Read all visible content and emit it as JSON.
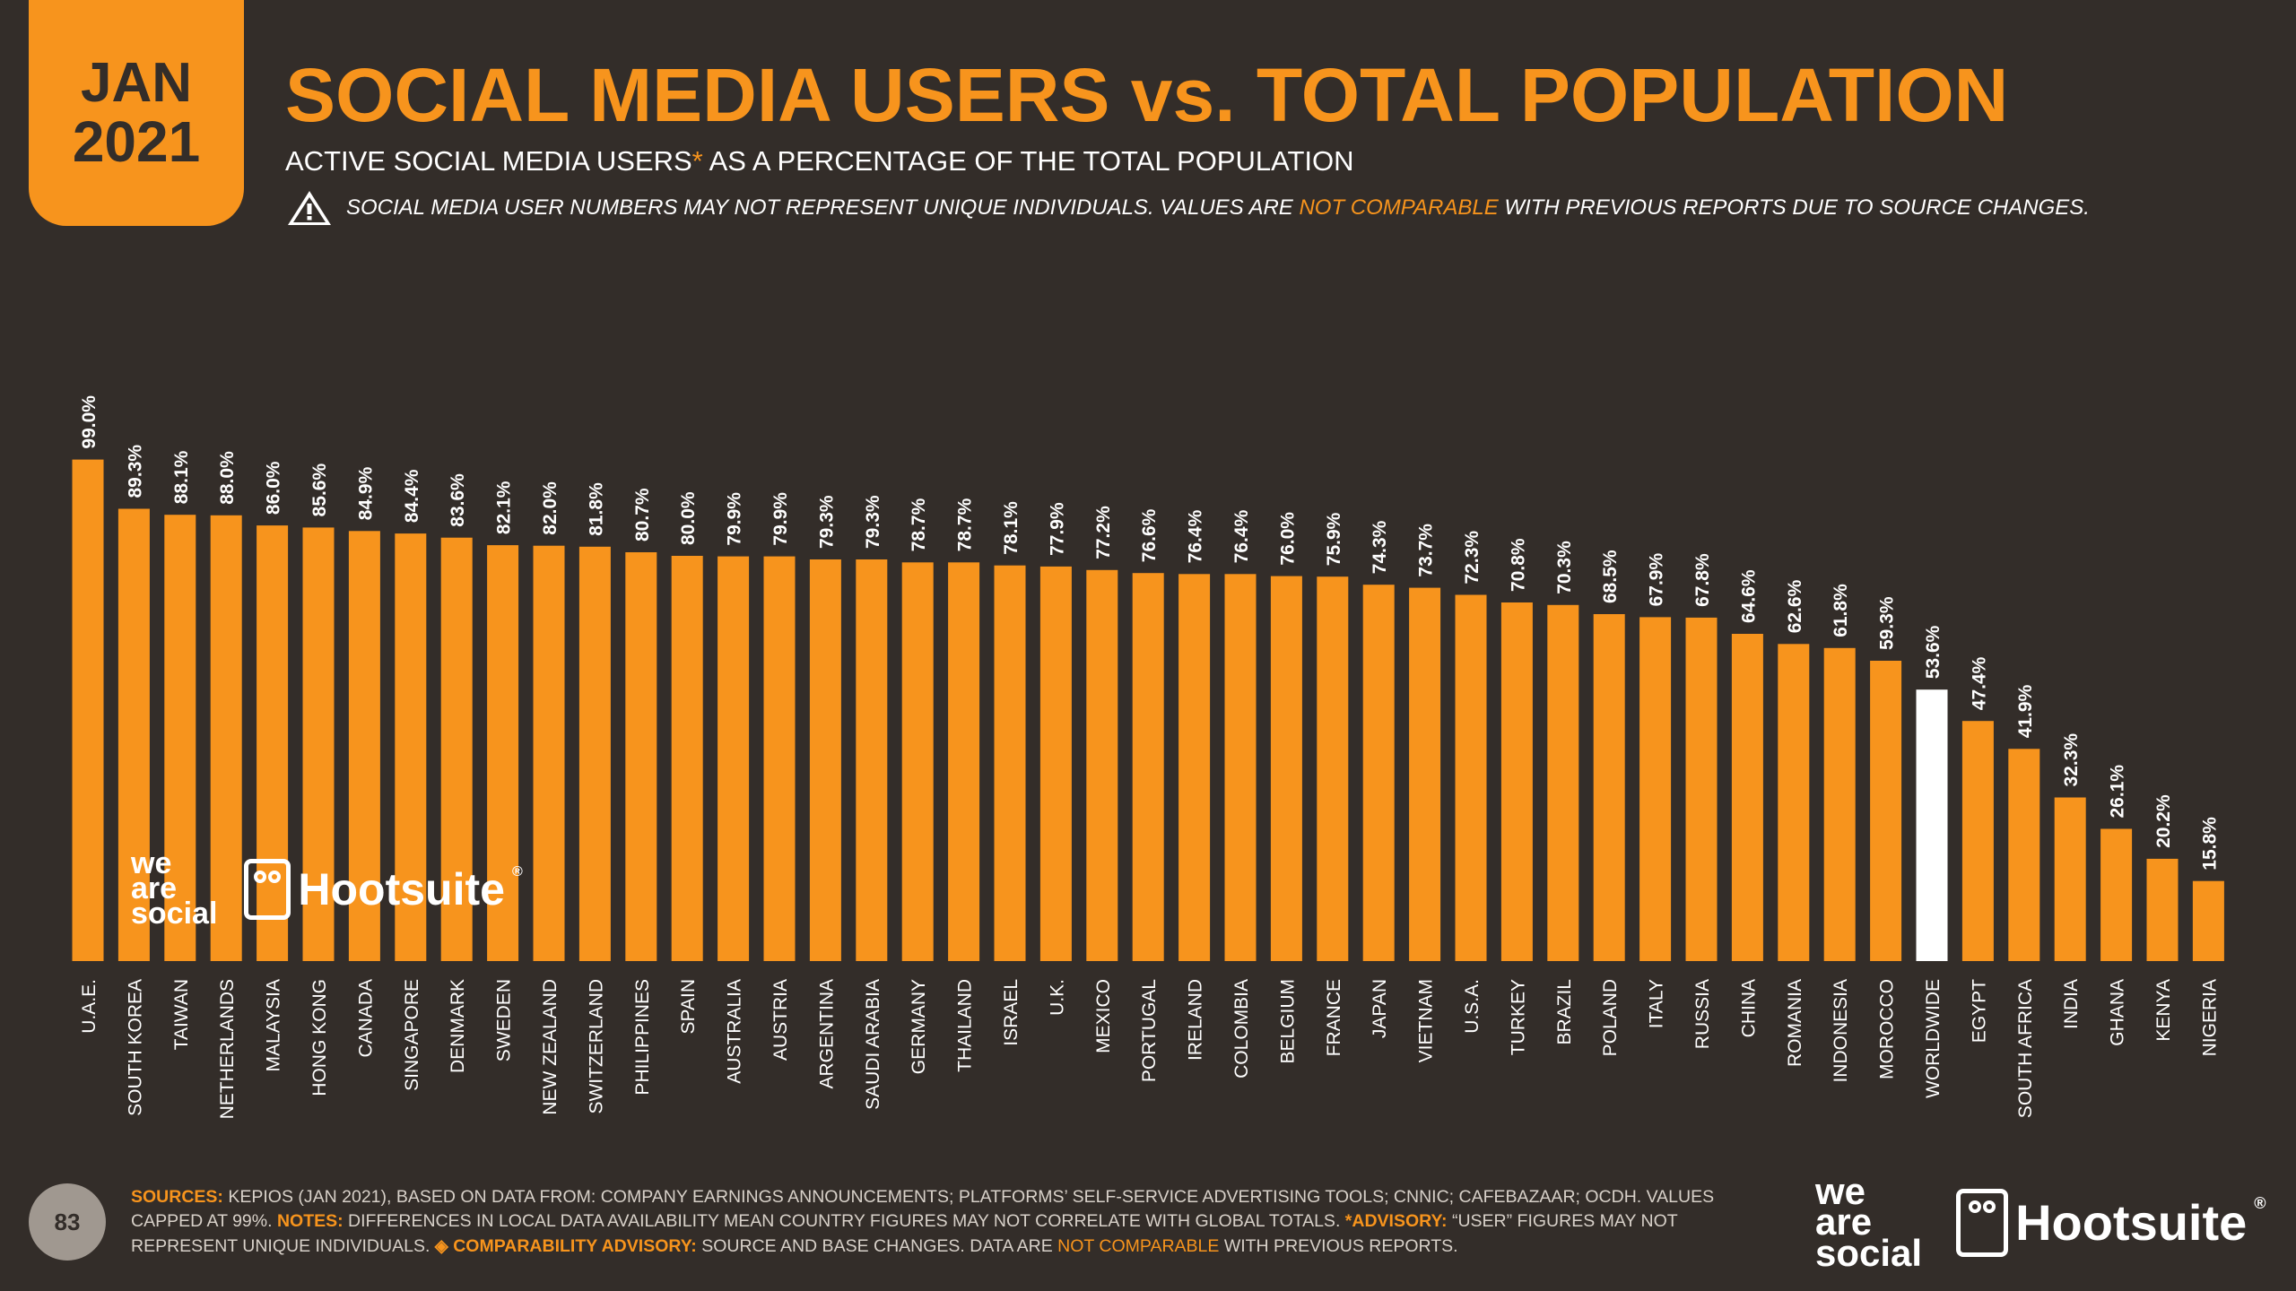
{
  "header": {
    "date_month": "JAN",
    "date_year": "2021",
    "title": "SOCIAL MEDIA USERS vs. TOTAL POPULATION",
    "subtitle": "ACTIVE SOCIAL MEDIA USERS",
    "subtitle_asterisk": "*",
    "subtitle_rest": " AS A PERCENTAGE OF THE TOTAL POPULATION",
    "warning_pre": "SOCIAL MEDIA USER NUMBERS MAY NOT REPRESENT UNIQUE INDIVIDUALS. VALUES ARE ",
    "warning_highlight": "NOT COMPARABLE",
    "warning_post": " WITH PREVIOUS REPORTS DUE TO SOURCE CHANGES."
  },
  "brand": {
    "we_are_social": [
      "we",
      "are",
      "social"
    ],
    "hootsuite": "Hootsuite",
    "registered": "®"
  },
  "colors": {
    "accent": "#f7941d",
    "background": "#332d29",
    "highlight_bar": "#ffffff"
  },
  "chart_data": {
    "type": "bar",
    "categories": [
      "U.A.E.",
      "SOUTH KOREA",
      "TAIWAN",
      "NETHERLANDS",
      "MALAYSIA",
      "HONG KONG",
      "CANADA",
      "SINGAPORE",
      "DENMARK",
      "SWEDEN",
      "NEW ZEALAND",
      "SWITZERLAND",
      "PHILIPPINES",
      "SPAIN",
      "AUSTRALIA",
      "AUSTRIA",
      "ARGENTINA",
      "SAUDI ARABIA",
      "GERMANY",
      "THAILAND",
      "ISRAEL",
      "U.K.",
      "MEXICO",
      "PORTUGAL",
      "IRELAND",
      "COLOMBIA",
      "BELGIUM",
      "FRANCE",
      "JAPAN",
      "VIETNAM",
      "U.S.A.",
      "TURKEY",
      "BRAZIL",
      "POLAND",
      "ITALY",
      "RUSSIA",
      "CHINA",
      "ROMANIA",
      "INDONESIA",
      "MOROCCO",
      "WORLDWIDE",
      "EGYPT",
      "SOUTH AFRICA",
      "INDIA",
      "GHANA",
      "KENYA",
      "NIGERIA"
    ],
    "values": [
      99.0,
      89.3,
      88.1,
      88.0,
      86.0,
      85.6,
      84.9,
      84.4,
      83.6,
      82.1,
      82.0,
      81.8,
      80.7,
      80.0,
      79.9,
      79.9,
      79.3,
      79.3,
      78.7,
      78.7,
      78.1,
      77.9,
      77.2,
      76.6,
      76.4,
      76.4,
      76.0,
      75.9,
      74.3,
      73.7,
      72.3,
      70.8,
      70.3,
      68.5,
      67.9,
      67.8,
      64.6,
      62.6,
      61.8,
      59.3,
      53.6,
      47.4,
      41.9,
      32.3,
      26.1,
      20.2,
      15.8
    ],
    "value_labels": [
      "99.0%",
      "89.3%",
      "88.1%",
      "88.0%",
      "86.0%",
      "85.6%",
      "84.9%",
      "84.4%",
      "83.6%",
      "82.1%",
      "82.0%",
      "81.8%",
      "80.7%",
      "80.0%",
      "79.9%",
      "79.9%",
      "79.3%",
      "79.3%",
      "78.7%",
      "78.7%",
      "78.1%",
      "77.9%",
      "77.2%",
      "76.6%",
      "76.4%",
      "76.4%",
      "76.0%",
      "75.9%",
      "74.3%",
      "73.7%",
      "72.3%",
      "70.8%",
      "70.3%",
      "68.5%",
      "67.9%",
      "67.8%",
      "64.6%",
      "62.6%",
      "61.8%",
      "59.3%",
      "53.6%",
      "47.4%",
      "41.9%",
      "32.3%",
      "26.1%",
      "20.2%",
      "15.8%"
    ],
    "highlight_category": "WORLDWIDE",
    "unit": "%",
    "ylim": [
      0,
      100
    ],
    "grid": false
  },
  "footer": {
    "page_number": "83",
    "sources_label": "SOURCES:",
    "sources_text": " KEPIOS (JAN 2021), BASED ON DATA FROM: COMPANY EARNINGS ANNOUNCEMENTS; PLATFORMS’ SELF-SERVICE ADVERTISING TOOLS; CNNIC; CAFEBAZAAR; OCDH. VALUES CAPPED AT 99%. ",
    "notes_label": "NOTES:",
    "notes_text": " DIFFERENCES IN LOCAL DATA AVAILABILITY MEAN COUNTRY FIGURES MAY NOT CORRELATE WITH GLOBAL TOTALS. ",
    "advisory_label": "*ADVISORY:",
    "advisory_text": " “USER” FIGURES MAY NOT REPRESENT UNIQUE INDIVIDUALS. ",
    "comparability_label": "◈ COMPARABILITY ADVISORY:",
    "comparability_text": " SOURCE AND BASE CHANGES. DATA ARE ",
    "comparability_highlight": "NOT COMPARABLE",
    "comparability_end": " WITH PREVIOUS REPORTS."
  }
}
